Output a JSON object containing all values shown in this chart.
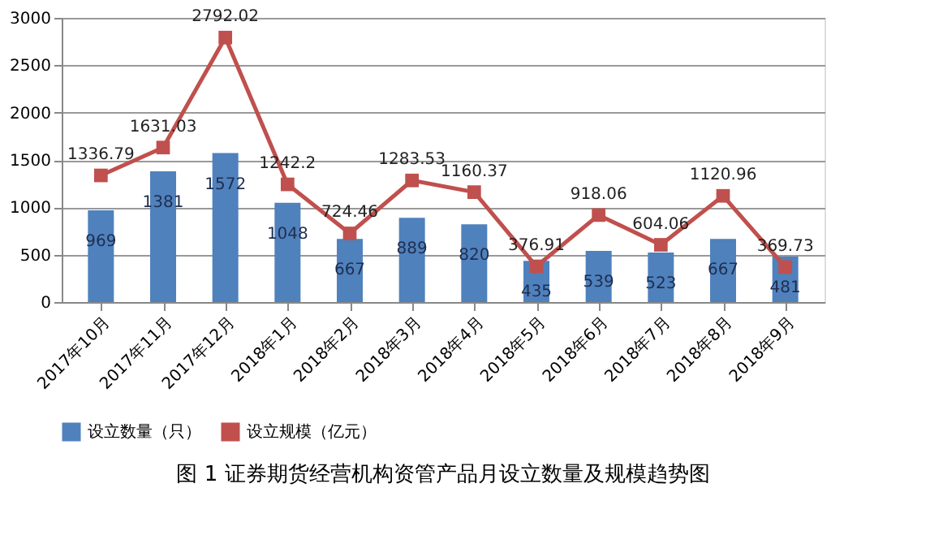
{
  "chart_data": {
    "type": "bar",
    "categories": [
      "2017年10月",
      "2017年11月",
      "2017年12月",
      "2018年1月",
      "2018年2月",
      "2018年3月",
      "2018年4月",
      "2018年5月",
      "2018年6月",
      "2018年7月",
      "2018年8月",
      "2018年9月"
    ],
    "series": [
      {
        "name": "设立数量（只）",
        "color": "#4f81bd",
        "values": [
          969,
          1381,
          1572,
          1048,
          667,
          889,
          820,
          435,
          539,
          523,
          667,
          481
        ]
      },
      {
        "name": "设立规模（亿元）",
        "type": "line",
        "color": "#c0504d",
        "marker": "square",
        "values": [
          1336.79,
          1631.03,
          2792.02,
          1242.2,
          724.46,
          1283.53,
          1160.37,
          376.91,
          918.06,
          604.06,
          1120.96,
          369.73
        ]
      }
    ],
    "ylim": [
      0,
      3000
    ],
    "yticks": [
      0,
      500,
      1000,
      1500,
      2000,
      2500,
      3000
    ],
    "grid": "y",
    "legend": "bottom",
    "data_labels": true,
    "annotations": [
      "图 1  证券期货经营机构资管产品月设立数量及规模趋势图"
    ]
  }
}
